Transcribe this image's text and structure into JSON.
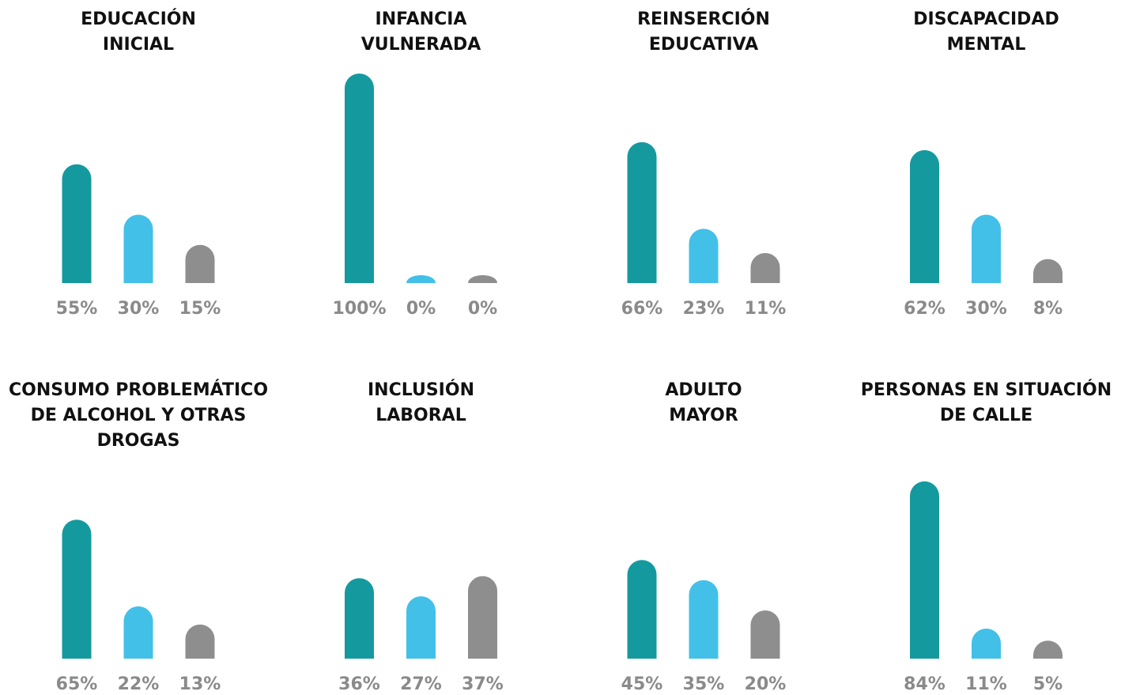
{
  "chart_data": [
    {
      "type": "bar",
      "title": [
        "EDUCACIÓN",
        "INICIAL"
      ],
      "values": [
        55,
        30,
        15
      ],
      "value_labels": [
        "55%",
        "30%",
        "15%"
      ],
      "colors": [
        "#149a9e",
        "#42c0e8",
        "#8e8e8e"
      ]
    },
    {
      "type": "bar",
      "title": [
        "INFANCIA",
        "VULNERADA"
      ],
      "values": [
        100,
        0,
        0
      ],
      "value_labels": [
        "100%",
        "0%",
        "0%"
      ],
      "colors": [
        "#149a9e",
        "#42c0e8",
        "#8e8e8e"
      ]
    },
    {
      "type": "bar",
      "title": [
        "REINSERCIÓN",
        "EDUCATIVA"
      ],
      "values": [
        66,
        23,
        11
      ],
      "value_labels": [
        "66%",
        "23%",
        "11%"
      ],
      "colors": [
        "#149a9e",
        "#42c0e8",
        "#8e8e8e"
      ]
    },
    {
      "type": "bar",
      "title": [
        "DISCAPACIDAD",
        "MENTAL"
      ],
      "values": [
        62,
        30,
        8
      ],
      "value_labels": [
        "62%",
        "30%",
        "8%"
      ],
      "colors": [
        "#149a9e",
        "#42c0e8",
        "#8e8e8e"
      ]
    },
    {
      "type": "bar",
      "title": [
        "CONSUMO PROBLEMÁTICO",
        "DE ALCOHOL Y OTRAS",
        "DROGAS"
      ],
      "values": [
        65,
        22,
        13
      ],
      "value_labels": [
        "65%",
        "22%",
        "13%"
      ],
      "colors": [
        "#149a9e",
        "#42c0e8",
        "#8e8e8e"
      ]
    },
    {
      "type": "bar",
      "title": [
        "INCLUSIÓN",
        "LABORAL"
      ],
      "values": [
        36,
        27,
        37
      ],
      "value_labels": [
        "36%",
        "27%",
        "37%"
      ],
      "colors": [
        "#149a9e",
        "#42c0e8",
        "#8e8e8e"
      ]
    },
    {
      "type": "bar",
      "title": [
        "ADULTO",
        "MAYOR"
      ],
      "values": [
        45,
        35,
        20
      ],
      "value_labels": [
        "45%",
        "35%",
        "20%"
      ],
      "colors": [
        "#149a9e",
        "#42c0e8",
        "#8e8e8e"
      ]
    },
    {
      "type": "bar",
      "title": [
        "PERSONAS EN SITUACIÓN",
        "DE CALLE"
      ],
      "values": [
        84,
        11,
        5
      ],
      "value_labels": [
        "84%",
        "11%",
        "5%"
      ],
      "colors": [
        "#149a9e",
        "#42c0e8",
        "#8e8e8e"
      ]
    }
  ]
}
